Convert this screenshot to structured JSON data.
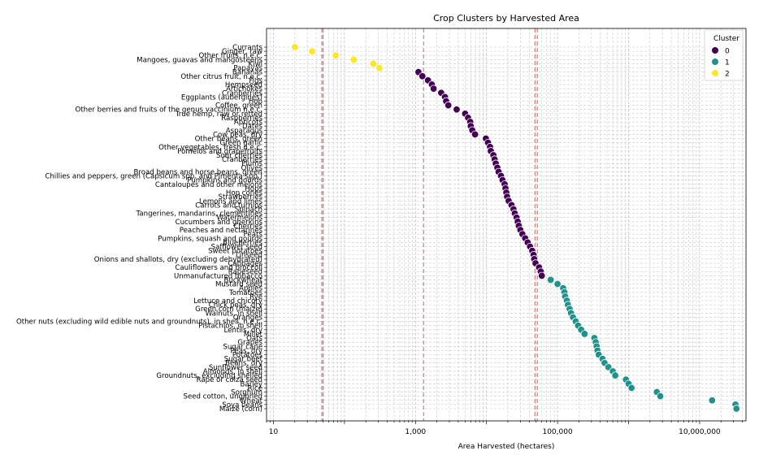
{
  "chart_data": {
    "type": "scatter",
    "title": "Crop Clusters by Harvested Area",
    "xlabel": "Area Harvested (hectares)",
    "ylabel": "",
    "xscale": "log",
    "xlim": [
      8,
      45000000
    ],
    "x_ticks": [
      10,
      1000,
      100000,
      10000000
    ],
    "x_tick_labels": [
      "10",
      "1,000",
      "100,000",
      "10,000,000"
    ],
    "grid": true,
    "legend": {
      "title": "Cluster",
      "placement": "top-right",
      "entries": [
        {
          "label": "0",
          "color": "#440154"
        },
        {
          "label": "1",
          "color": "#21918c"
        },
        {
          "label": "2",
          "color": "#fde725"
        }
      ]
    },
    "vlines": [
      48,
      50,
      1300,
      48000,
      52000
    ],
    "vline_color": "#e06060",
    "series": [
      {
        "name": "2",
        "color": "#fde725",
        "points": [
          {
            "label": "Currants",
            "x": 20
          },
          {
            "label": "Ginger, raw",
            "x": 35
          },
          {
            "label": "Other fruits, n.e.c.",
            "x": 75
          },
          {
            "label": "Mangoes, guavas and mangosteens",
            "x": 135
          },
          {
            "label": "Kiwi",
            "x": 255
          },
          {
            "label": "Papayas",
            "x": 310
          }
        ]
      },
      {
        "name": "0",
        "color": "#440154",
        "points": [
          {
            "label": "Bananas",
            "x": 1100
          },
          {
            "label": "Other citrus fruit, n.e.c.",
            "x": 1250
          },
          {
            "label": "Figs",
            "x": 1500
          },
          {
            "label": "Hempseed",
            "x": 1700
          },
          {
            "label": "Artichokes",
            "x": 1800
          },
          {
            "label": "Cranberries",
            "x": 2300
          },
          {
            "label": "Eggplants (aubergines)",
            "x": 2600
          },
          {
            "label": "Hop",
            "x": 2700
          },
          {
            "label": "Coffee, green",
            "x": 2900
          },
          {
            "label": "Other berries and fruits of the genus vaccinium n.e.c.",
            "x": 3800
          },
          {
            "label": "True hemp, raw or retted",
            "x": 5000
          },
          {
            "label": "Raspberries",
            "x": 5500
          },
          {
            "label": "Apricots",
            "x": 5900
          },
          {
            "label": "Dates",
            "x": 6000
          },
          {
            "label": "Asparagus",
            "x": 6300
          },
          {
            "label": "Cow peas, dry",
            "x": 6900
          },
          {
            "label": "Other beans, green",
            "x": 9800
          },
          {
            "label": "Green garlic",
            "x": 10500
          },
          {
            "label": "Other vegetables, fresh n.e.c.",
            "x": 11200
          },
          {
            "label": "Pomelos and grapefruits",
            "x": 11500
          },
          {
            "label": "Sour cherries",
            "x": 12500
          },
          {
            "label": "Cranberries",
            "x": 13000
          },
          {
            "label": "Plums",
            "x": 13500
          },
          {
            "label": "Olives",
            "x": 14200
          },
          {
            "label": "Broad beans and horse beans, green",
            "x": 14800
          },
          {
            "label": "Chillies and peppers, green (Capsicum spp. and Pimenta spp.)",
            "x": 16000
          },
          {
            "label": "Pumpkins and gourds",
            "x": 16800
          },
          {
            "label": "Cantaloupes and other melons",
            "x": 18000
          },
          {
            "label": "Hops",
            "x": 18500
          },
          {
            "label": "Hop cones",
            "x": 19000
          },
          {
            "label": "Strawberries",
            "x": 19500
          },
          {
            "label": "Lemons and limes",
            "x": 20500
          },
          {
            "label": "Carrots and turnips",
            "x": 22500
          },
          {
            "label": "Spinach",
            "x": 24000
          },
          {
            "label": "Tangerines, mandarins, clementines",
            "x": 25000
          },
          {
            "label": "Watermelons",
            "x": 26500
          },
          {
            "label": "Cucumbers and gherkins",
            "x": 27500
          },
          {
            "label": "Cherries",
            "x": 28500
          },
          {
            "label": "Peaches and nectarines",
            "x": 30000
          },
          {
            "label": "Pears",
            "x": 32000
          },
          {
            "label": "Pumpkins, squash and gourds",
            "x": 35000
          },
          {
            "label": "Blueberries",
            "x": 38000
          },
          {
            "label": "Safflower seed",
            "x": 41000
          },
          {
            "label": "Sweet potatoes",
            "x": 44000
          },
          {
            "label": "Linseed",
            "x": 46000
          },
          {
            "label": "Onions and shallots, dry (excluding dehydrated)",
            "x": 47000
          },
          {
            "label": "Cabbages",
            "x": 49000
          },
          {
            "label": "Cauliflowers and broccoli",
            "x": 55000
          },
          {
            "label": "Rapeseed",
            "x": 58000
          },
          {
            "label": "Unmanufactured tobacco",
            "x": 60000
          }
        ]
      },
      {
        "name": "1",
        "color": "#21918c",
        "points": [
          {
            "label": "Buckwheat",
            "x": 80000
          },
          {
            "label": "Mustard seed",
            "x": 100000
          },
          {
            "label": "Apples",
            "x": 120000
          },
          {
            "label": "Tomatoes",
            "x": 125000
          },
          {
            "label": "Rye",
            "x": 128000
          },
          {
            "label": "Lettuce and chicory",
            "x": 135000
          },
          {
            "label": "Chick peas, dry",
            "x": 140000
          },
          {
            "label": "Green corn (maize)",
            "x": 148000
          },
          {
            "label": "Walnuts, in shell",
            "x": 155000
          },
          {
            "label": "Oranges",
            "x": 165000
          },
          {
            "label": "Other nuts (excluding wild edible nuts and groundnuts), in shell, n.e.c.",
            "x": 180000
          },
          {
            "label": "Pistachios, in shell",
            "x": 195000
          },
          {
            "label": "Lentils, dry",
            "x": 215000
          },
          {
            "label": "Millet",
            "x": 240000
          },
          {
            "label": "Oats",
            "x": 330000
          },
          {
            "label": "Grapes",
            "x": 345000
          },
          {
            "label": "Sugar cane",
            "x": 355000
          },
          {
            "label": "Peas, dry",
            "x": 365000
          },
          {
            "label": "Potatoes",
            "x": 380000
          },
          {
            "label": "Sugar beet",
            "x": 430000
          },
          {
            "label": "Beans, dry",
            "x": 460000
          },
          {
            "label": "Sunflower seed",
            "x": 520000
          },
          {
            "label": "Almonds, in shell",
            "x": 600000
          },
          {
            "label": "Groundnuts, excluding shelled",
            "x": 650000
          },
          {
            "label": "Rape or colza seed",
            "x": 920000
          },
          {
            "label": "Barley",
            "x": 1000000
          },
          {
            "label": "Rice",
            "x": 1100000
          },
          {
            "label": "Sorghum",
            "x": 2500000
          },
          {
            "label": "Seed cotton, unginned",
            "x": 2800000
          },
          {
            "label": "Wheat",
            "x": 15000000
          },
          {
            "label": "Soya beans",
            "x": 32000000
          },
          {
            "label": "Maize (corn)",
            "x": 33000000
          }
        ]
      }
    ]
  }
}
